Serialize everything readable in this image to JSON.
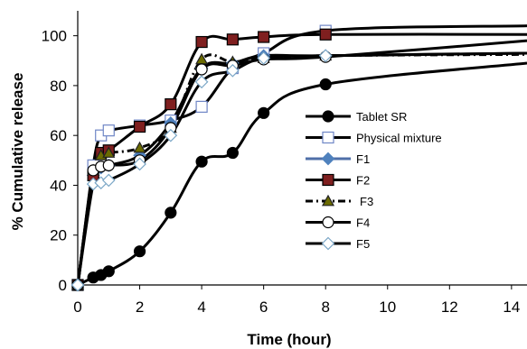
{
  "chart_data": {
    "type": "line",
    "xlabel": "Time (hour)",
    "ylabel": "% Cumulative release",
    "xlim": [
      0,
      14.5
    ],
    "ylim": [
      0,
      110
    ],
    "xticks": [
      0,
      2,
      4,
      6,
      8,
      10,
      12,
      14
    ],
    "yticks": [
      0,
      20,
      40,
      60,
      80,
      100
    ],
    "grid": false,
    "legend": "center-right",
    "series": [
      {
        "name": "Tablet SR",
        "marker": "circle-filled",
        "line": "solid",
        "color": "#000000",
        "x": [
          0,
          0.5,
          0.75,
          1,
          2,
          3,
          4,
          5,
          6,
          8
        ],
        "y": [
          0,
          3,
          4,
          5.5,
          13.5,
          29,
          49.5,
          53,
          69,
          80.5
        ],
        "trend_end": [
          14.5,
          89
        ]
      },
      {
        "name": "Physical mixture",
        "marker": "square-open",
        "line": "solid",
        "color": "#000000",
        "x": [
          0,
          0.5,
          0.75,
          1,
          2,
          3,
          4,
          5,
          6,
          8
        ],
        "y": [
          0,
          48,
          60,
          62,
          64,
          66,
          71.5,
          87,
          93,
          102
        ],
        "trend_end": [
          14.5,
          104
        ]
      },
      {
        "name": "F1",
        "marker": "diamond-filled",
        "line": "solid",
        "color": "#4f81bd",
        "x": [
          0,
          0.5,
          0.75,
          1,
          2,
          3,
          4,
          5,
          6,
          8
        ],
        "y": [
          0,
          44,
          47,
          48,
          52,
          65,
          87,
          89,
          92,
          92
        ],
        "trend_end": [
          14.5,
          93
        ]
      },
      {
        "name": "F2",
        "marker": "square-filled",
        "line": "solid",
        "color": "#7f1f1f",
        "x": [
          0,
          0.5,
          0.75,
          1,
          2,
          3,
          4,
          5,
          6,
          8
        ],
        "y": [
          0,
          44,
          53,
          54,
          63.5,
          72.5,
          97.5,
          98.5,
          99.5,
          100.5
        ],
        "trend_end": [
          14.5,
          100.5
        ]
      },
      {
        "name": "F3",
        "marker": "triangle-filled",
        "line": "dash-dot",
        "color": "#1a1a00",
        "x": [
          0,
          0.5,
          0.75,
          1,
          2,
          3,
          4,
          5,
          6,
          8
        ],
        "y": [
          0,
          46,
          52,
          53,
          55,
          63,
          90.5,
          89.5,
          91,
          92
        ],
        "trend_end": [
          14.5,
          92.5
        ]
      },
      {
        "name": "F4",
        "marker": "circle-open",
        "line": "solid",
        "color": "#000000",
        "x": [
          0,
          0.5,
          0.75,
          1,
          2,
          3,
          4,
          5,
          6,
          8
        ],
        "y": [
          0,
          46,
          47.5,
          48,
          50,
          63,
          86.5,
          88,
          90.5,
          91.5
        ],
        "trend_end": [
          14.5,
          98
        ]
      },
      {
        "name": "F5",
        "marker": "diamond-open",
        "line": "solid",
        "color": "#000000",
        "x": [
          0,
          0.5,
          0.75,
          1,
          2,
          3,
          4,
          5,
          6,
          8
        ],
        "y": [
          0,
          40.5,
          41,
          42,
          48.5,
          60,
          81.5,
          86,
          91,
          92
        ],
        "trend_end": [
          14.5,
          93
        ]
      }
    ]
  }
}
